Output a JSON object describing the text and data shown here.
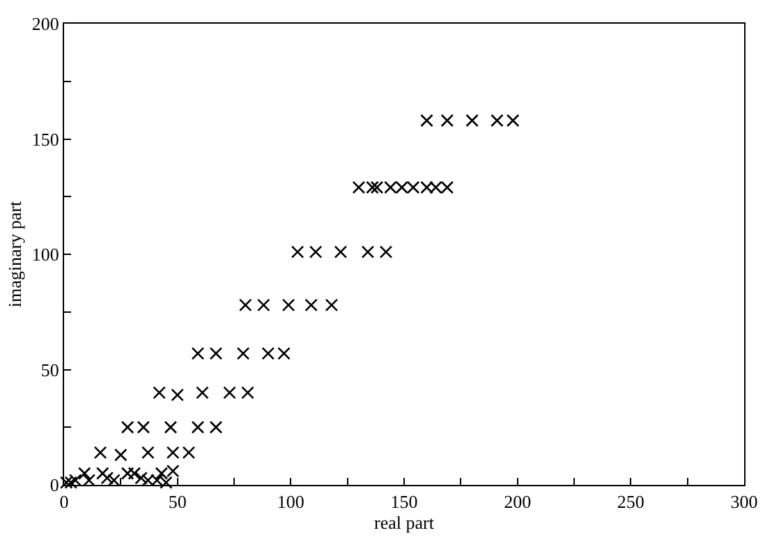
{
  "chart_data": {
    "type": "scatter",
    "xlabel": "real part",
    "ylabel": "imaginary part",
    "x": [
      1,
      3,
      5,
      9,
      11,
      17,
      19,
      22,
      28,
      31,
      34,
      37,
      41,
      43,
      45,
      48,
      16,
      25,
      37,
      48,
      55,
      28,
      35,
      47,
      59,
      67,
      42,
      50,
      61,
      73,
      81,
      59,
      67,
      79,
      90,
      97,
      80,
      88,
      99,
      109,
      118,
      103,
      111,
      122,
      134,
      142,
      130,
      136,
      138,
      144,
      149,
      154,
      160,
      164,
      169,
      160,
      169,
      180,
      191,
      198
    ],
    "series": [
      {
        "color": "#000000",
        "values": [
          1,
          1,
          2,
          5,
          2,
          5,
          3,
          2,
          5,
          5,
          3,
          2,
          2,
          5,
          1,
          6,
          14,
          13,
          14,
          14,
          14,
          25,
          25,
          25,
          25,
          25,
          40,
          39,
          40,
          40,
          40,
          57,
          57,
          57,
          57,
          57,
          78,
          78,
          78,
          78,
          78,
          101,
          101,
          101,
          101,
          101,
          129,
          129,
          129,
          129,
          129,
          129,
          129,
          129,
          129,
          158,
          158,
          158,
          158,
          158
        ]
      }
    ],
    "xlim": [
      0,
      300
    ],
    "ylim": [
      0,
      200
    ],
    "xticks": [
      0,
      {
        "value": 25,
        "label": null
      },
      50,
      {
        "value": 75,
        "label": null
      },
      100,
      {
        "value": 125,
        "label": null
      },
      150,
      {
        "value": 175,
        "label": null
      },
      200,
      {
        "value": 225,
        "label": null
      },
      250,
      {
        "value": 275,
        "label": null
      },
      300
    ],
    "yticks": [
      0,
      {
        "value": 25,
        "label": null
      },
      50,
      {
        "value": 75,
        "label": null
      },
      100,
      {
        "value": 125,
        "label": null
      },
      150,
      {
        "value": 175,
        "label": null
      },
      200
    ],
    "marker": "cross"
  }
}
